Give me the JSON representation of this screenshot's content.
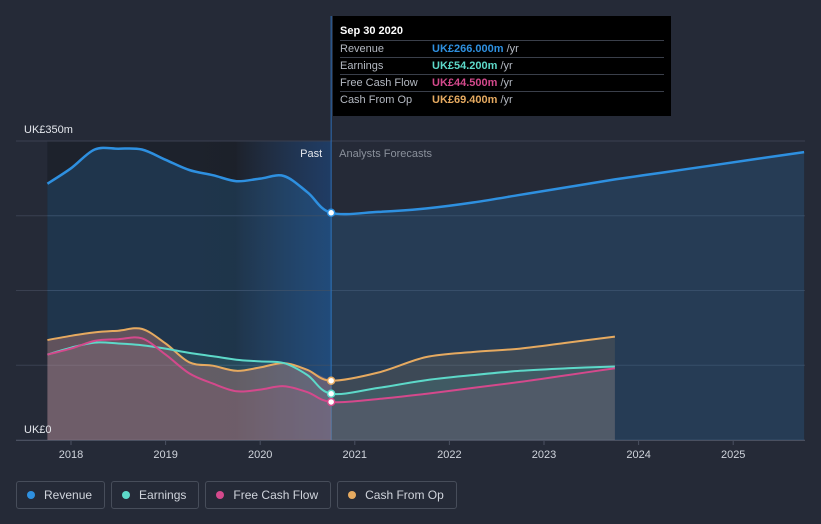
{
  "chart_data": {
    "type": "line",
    "unit": "UK£m",
    "ylim": [
      0,
      350
    ],
    "xlim": [
      2017.6,
      2025.8
    ],
    "x_ticks": [
      "2018",
      "2019",
      "2020",
      "2021",
      "2022",
      "2023",
      "2024",
      "2025"
    ],
    "y_top_label": "UK£350m",
    "y_bottom_label": "UK£0",
    "past_label": "Past",
    "forecast_label": "Analysts Forecasts",
    "divider_x": 2020.75,
    "series": [
      {
        "name": "Revenue",
        "key": "revenue",
        "color": "#2e90e0",
        "past": [
          [
            2017.75,
            300
          ],
          [
            2018.0,
            318
          ],
          [
            2018.25,
            340
          ],
          [
            2018.5,
            341
          ],
          [
            2018.75,
            340
          ],
          [
            2019.0,
            328
          ],
          [
            2019.25,
            316
          ],
          [
            2019.5,
            310
          ],
          [
            2019.75,
            303
          ],
          [
            2020.0,
            306
          ],
          [
            2020.25,
            309
          ],
          [
            2020.5,
            290
          ],
          [
            2020.75,
            266
          ]
        ],
        "forecast": [
          [
            2020.75,
            266
          ],
          [
            2021.25,
            267
          ],
          [
            2021.75,
            271
          ],
          [
            2022.25,
            278
          ],
          [
            2022.75,
            287
          ],
          [
            2023.25,
            296
          ],
          [
            2023.75,
            305
          ],
          [
            2024.25,
            313
          ],
          [
            2024.75,
            321
          ],
          [
            2025.25,
            329
          ],
          [
            2025.75,
            337
          ]
        ]
      },
      {
        "name": "Earnings",
        "key": "earnings",
        "color": "#5dd9c9",
        "past": [
          [
            2017.75,
            100
          ],
          [
            2018.0,
            108
          ],
          [
            2018.25,
            114
          ],
          [
            2018.5,
            113
          ],
          [
            2018.75,
            111
          ],
          [
            2019.0,
            107
          ],
          [
            2019.25,
            102
          ],
          [
            2019.5,
            98
          ],
          [
            2019.75,
            94
          ],
          [
            2020.0,
            92
          ],
          [
            2020.25,
            90
          ],
          [
            2020.5,
            76
          ],
          [
            2020.75,
            54.2
          ]
        ],
        "forecast": [
          [
            2020.75,
            54.2
          ],
          [
            2021.25,
            61
          ],
          [
            2021.75,
            70
          ],
          [
            2022.25,
            76
          ],
          [
            2022.75,
            81
          ],
          [
            2023.25,
            84
          ],
          [
            2023.75,
            86
          ]
        ]
      },
      {
        "name": "Free Cash Flow",
        "key": "fcf",
        "color": "#d4498c",
        "past": [
          [
            2017.75,
            100
          ],
          [
            2018.0,
            107
          ],
          [
            2018.25,
            116
          ],
          [
            2018.5,
            118
          ],
          [
            2018.75,
            119
          ],
          [
            2019.0,
            100
          ],
          [
            2019.25,
            78
          ],
          [
            2019.5,
            66
          ],
          [
            2019.75,
            57
          ],
          [
            2020.0,
            59
          ],
          [
            2020.25,
            63
          ],
          [
            2020.5,
            56
          ],
          [
            2020.75,
            44.5
          ]
        ],
        "forecast": [
          [
            2020.75,
            44.5
          ],
          [
            2021.25,
            48
          ],
          [
            2021.75,
            54
          ],
          [
            2022.25,
            61
          ],
          [
            2022.75,
            68
          ],
          [
            2023.25,
            76
          ],
          [
            2023.75,
            84
          ]
        ]
      },
      {
        "name": "Cash From Op",
        "key": "cfo",
        "color": "#e6aa60",
        "past": [
          [
            2017.75,
            117
          ],
          [
            2018.0,
            122
          ],
          [
            2018.25,
            126
          ],
          [
            2018.5,
            128
          ],
          [
            2018.75,
            130
          ],
          [
            2019.0,
            113
          ],
          [
            2019.25,
            91
          ],
          [
            2019.5,
            87
          ],
          [
            2019.75,
            81
          ],
          [
            2020.0,
            85
          ],
          [
            2020.25,
            90
          ],
          [
            2020.5,
            82
          ],
          [
            2020.75,
            69.4
          ]
        ],
        "forecast": [
          [
            2020.75,
            69.4
          ],
          [
            2021.25,
            79
          ],
          [
            2021.75,
            97
          ],
          [
            2022.25,
            103
          ],
          [
            2022.75,
            107
          ],
          [
            2023.25,
            114
          ],
          [
            2023.75,
            121
          ]
        ]
      }
    ],
    "tooltip": {
      "date": "Sep 30 2020",
      "rows": [
        {
          "label": "Revenue",
          "value": "UK£266.000m",
          "unit": "/yr",
          "color": "#2e90e0"
        },
        {
          "label": "Earnings",
          "value": "UK£54.200m",
          "unit": "/yr",
          "color": "#5dd9c9"
        },
        {
          "label": "Free Cash Flow",
          "value": "UK£44.500m",
          "unit": "/yr",
          "color": "#d4498c"
        },
        {
          "label": "Cash From Op",
          "value": "UK£69.400m",
          "unit": "/yr",
          "color": "#e6aa60"
        }
      ]
    }
  },
  "legend": [
    {
      "label": "Revenue",
      "color": "#2e90e0"
    },
    {
      "label": "Earnings",
      "color": "#5dd9c9"
    },
    {
      "label": "Free Cash Flow",
      "color": "#d4498c"
    },
    {
      "label": "Cash From Op",
      "color": "#e6aa60"
    }
  ]
}
